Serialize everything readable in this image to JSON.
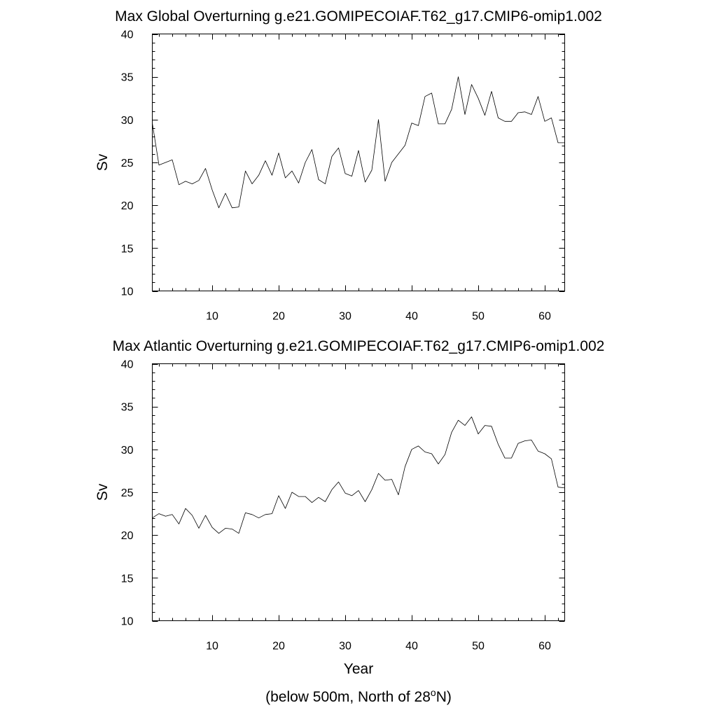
{
  "chart_data": [
    {
      "type": "line",
      "title": "Max Global Overturning g.e21.GOMIPECOIAF.T62_g17.CMIP6-omip1.002",
      "xlabel": "",
      "ylabel": "Sv",
      "xlim": [
        1,
        63
      ],
      "ylim": [
        10,
        40
      ],
      "xticks": [
        10,
        20,
        30,
        40,
        50,
        60
      ],
      "yticks": [
        10,
        15,
        20,
        25,
        30,
        35,
        40
      ],
      "x_minor_step": 2,
      "y_minor_step": 1,
      "grid": false,
      "line_color": "#000000",
      "series": [
        {
          "name": "Max Global Overturning",
          "x": [
            1,
            2,
            3,
            4,
            5,
            6,
            7,
            8,
            9,
            10,
            11,
            12,
            13,
            14,
            15,
            16,
            17,
            18,
            19,
            20,
            21,
            22,
            23,
            24,
            25,
            26,
            27,
            28,
            29,
            30,
            31,
            32,
            33,
            34,
            35,
            36,
            37,
            38,
            39,
            40,
            41,
            42,
            43,
            44,
            45,
            46,
            47,
            48,
            49,
            50,
            51,
            52,
            53,
            54,
            55,
            56,
            57,
            58,
            59,
            60,
            61,
            62,
            63
          ],
          "values": [
            29.6,
            24.7,
            25.0,
            25.3,
            22.4,
            22.8,
            22.5,
            22.9,
            24.3,
            21.8,
            19.7,
            21.4,
            19.7,
            19.8,
            24.0,
            22.5,
            23.5,
            25.2,
            23.5,
            26.1,
            23.2,
            24.0,
            22.6,
            25.0,
            26.5,
            23.0,
            22.5,
            25.7,
            26.7,
            23.7,
            23.4,
            26.4,
            22.7,
            24.1,
            30.0,
            22.8,
            25.0,
            26.0,
            27.0,
            29.6,
            29.3,
            32.7,
            33.1,
            29.5,
            29.5,
            31.2,
            35.0,
            30.6,
            34.1,
            32.5,
            30.5,
            33.3,
            30.2,
            29.8,
            29.8,
            30.8,
            30.9,
            30.6,
            32.7,
            29.8,
            30.2,
            27.3,
            27.3
          ]
        }
      ]
    },
    {
      "type": "line",
      "title": "Max Atlantic Overturning g.e21.GOMIPECOIAF.T62_g17.CMIP6-omip1.002",
      "xlabel": "Year",
      "ylabel": "Sv",
      "xlim": [
        1,
        63
      ],
      "ylim": [
        10,
        40
      ],
      "xticks": [
        10,
        20,
        30,
        40,
        50,
        60
      ],
      "yticks": [
        10,
        15,
        20,
        25,
        30,
        35,
        40
      ],
      "x_minor_step": 2,
      "y_minor_step": 1,
      "grid": false,
      "line_color": "#000000",
      "series": [
        {
          "name": "Max Atlantic Overturning",
          "x": [
            1,
            2,
            3,
            4,
            5,
            6,
            7,
            8,
            9,
            10,
            11,
            12,
            13,
            14,
            15,
            16,
            17,
            18,
            19,
            20,
            21,
            22,
            23,
            24,
            25,
            26,
            27,
            28,
            29,
            30,
            31,
            32,
            33,
            34,
            35,
            36,
            37,
            38,
            39,
            40,
            41,
            42,
            43,
            44,
            45,
            46,
            47,
            48,
            49,
            50,
            51,
            52,
            53,
            54,
            55,
            56,
            57,
            58,
            59,
            60,
            61,
            62,
            63
          ],
          "values": [
            22.0,
            22.5,
            22.2,
            22.4,
            21.3,
            23.1,
            22.3,
            20.8,
            22.3,
            20.9,
            20.2,
            20.8,
            20.7,
            20.2,
            22.6,
            22.4,
            22.0,
            22.4,
            22.5,
            24.6,
            23.1,
            25.0,
            24.5,
            24.5,
            23.8,
            24.4,
            23.9,
            25.3,
            26.2,
            24.9,
            24.6,
            25.2,
            23.9,
            25.3,
            27.2,
            26.4,
            26.5,
            24.7,
            28.0,
            30.0,
            30.4,
            29.7,
            29.5,
            28.3,
            29.4,
            32.0,
            33.4,
            32.8,
            33.8,
            31.8,
            32.8,
            32.7,
            30.6,
            29.0,
            29.0,
            30.7,
            31.0,
            31.1,
            29.8,
            29.5,
            28.9,
            25.6,
            25.5
          ]
        }
      ]
    }
  ],
  "footnote": {
    "prefix": "(below 500m, North of 28",
    "superscript": "o",
    "suffix": "N)"
  }
}
